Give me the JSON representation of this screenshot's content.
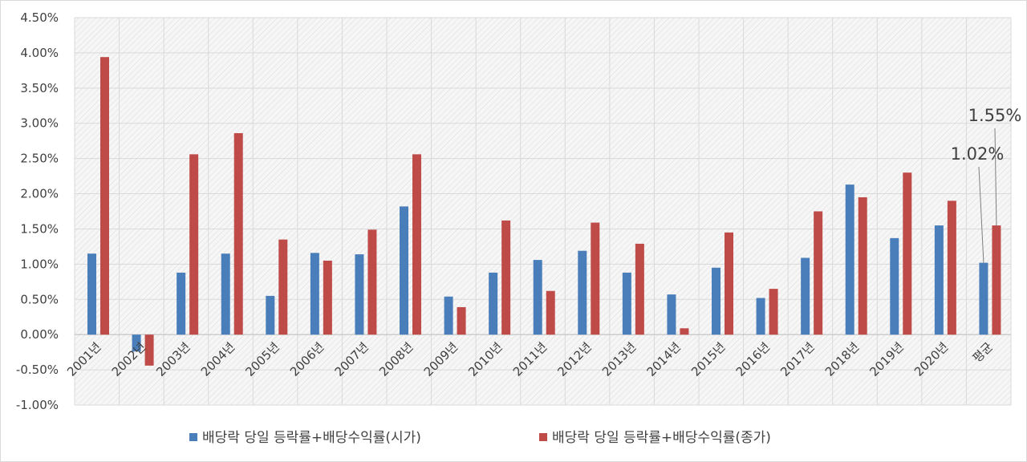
{
  "chart_data": {
    "type": "bar",
    "categories": [
      "2001년",
      "2002년",
      "2003년",
      "2004년",
      "2005년",
      "2006년",
      "2007년",
      "2008년",
      "2009년",
      "2010년",
      "2011년",
      "2012년",
      "2013년",
      "2014년",
      "2015년",
      "2016년",
      "2017년",
      "2018년",
      "2019년",
      "2020년",
      "평균"
    ],
    "series": [
      {
        "name": "배당락 당일 등락률+배당수익률(시가)",
        "color": "#4a7ebb",
        "values": [
          1.15,
          -0.24,
          0.88,
          1.15,
          0.55,
          1.16,
          1.14,
          1.82,
          0.54,
          0.88,
          1.06,
          1.19,
          0.88,
          0.57,
          0.95,
          0.52,
          1.09,
          2.13,
          1.37,
          1.55,
          1.02
        ]
      },
      {
        "name": "배당락 당일 등락률+배당수익률(종가)",
        "color": "#be4b48",
        "values": [
          3.94,
          -0.44,
          2.56,
          2.86,
          1.35,
          1.05,
          1.49,
          2.56,
          0.39,
          1.62,
          0.62,
          1.59,
          1.29,
          0.09,
          1.45,
          0.65,
          1.75,
          1.95,
          2.3,
          1.9,
          1.55
        ]
      }
    ],
    "ylim": [
      -1.0,
      4.5
    ],
    "yticks": [
      -1.0,
      -0.5,
      0.0,
      0.5,
      1.0,
      1.5,
      2.0,
      2.5,
      3.0,
      3.5,
      4.0,
      4.5
    ],
    "ytick_labels": [
      "-1.00%",
      "-0.50%",
      "0.00%",
      "0.50%",
      "1.00%",
      "1.50%",
      "2.00%",
      "2.50%",
      "3.00%",
      "3.50%",
      "4.00%",
      "4.50%"
    ],
    "grid": true,
    "legend_position": "bottom",
    "annotations": [
      {
        "text": "1.02%",
        "series": 0,
        "category": "평균"
      },
      {
        "text": "1.55%",
        "series": 1,
        "category": "평균"
      }
    ]
  }
}
